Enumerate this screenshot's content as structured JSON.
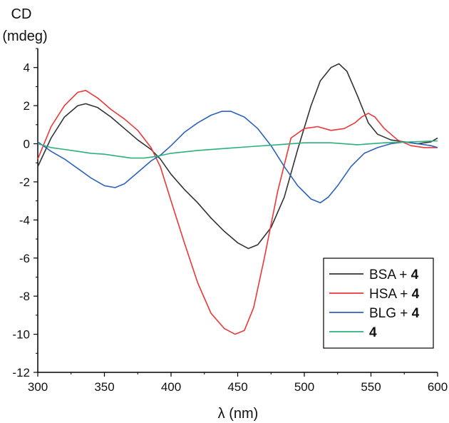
{
  "chart_data": {
    "type": "line",
    "title": "",
    "ylabel_line1": "CD",
    "ylabel_line2": "(mdeg)",
    "xlabel": "λ (nm)",
    "xlim": [
      300,
      600
    ],
    "ylim": [
      -12,
      5
    ],
    "xticks": [
      300,
      350,
      400,
      450,
      500,
      550,
      600
    ],
    "yticks": [
      -12,
      -10,
      -8,
      -6,
      -4,
      -2,
      0,
      2,
      4
    ],
    "grid": false,
    "legend_position": "bottom-right",
    "series": [
      {
        "name": "BSA + 4",
        "legend_prefix": "BSA + ",
        "legend_bold": "4",
        "color": "#333333",
        "x": [
          300,
          310,
          320,
          330,
          336,
          345,
          355,
          365,
          375,
          385,
          392,
          400,
          410,
          420,
          430,
          440,
          450,
          458,
          465,
          475,
          485,
          495,
          505,
          512,
          520,
          526,
          532,
          540,
          548,
          555,
          565,
          575,
          585,
          595,
          600
        ],
        "y": [
          -1.2,
          0.3,
          1.4,
          2.0,
          2.1,
          1.9,
          1.4,
          0.8,
          0.2,
          -0.3,
          -0.8,
          -1.6,
          -2.4,
          -3.1,
          -3.9,
          -4.6,
          -5.2,
          -5.5,
          -5.3,
          -4.4,
          -2.8,
          -0.3,
          2.0,
          3.3,
          4.0,
          4.2,
          3.8,
          2.5,
          1.1,
          0.5,
          0.2,
          0.1,
          0.0,
          0.1,
          0.3
        ]
      },
      {
        "name": "HSA + 4",
        "legend_prefix": "HSA + ",
        "legend_bold": "4",
        "color": "#e8383a",
        "x": [
          300,
          310,
          320,
          330,
          336,
          345,
          355,
          365,
          375,
          385,
          392,
          400,
          410,
          420,
          430,
          440,
          448,
          455,
          462,
          470,
          480,
          490,
          500,
          510,
          520,
          530,
          538,
          543,
          548,
          553,
          560,
          570,
          580,
          590,
          600
        ],
        "y": [
          -0.8,
          0.9,
          2.0,
          2.7,
          2.8,
          2.4,
          1.8,
          1.3,
          0.7,
          -0.2,
          -1.2,
          -3.0,
          -5.2,
          -7.3,
          -8.9,
          -9.7,
          -10.0,
          -9.8,
          -8.6,
          -6.0,
          -2.5,
          0.3,
          0.8,
          0.9,
          0.7,
          0.8,
          1.1,
          1.4,
          1.6,
          1.4,
          0.8,
          0.2,
          -0.1,
          -0.2,
          -0.2
        ]
      },
      {
        "name": "BLG + 4",
        "legend_prefix": "BLG + ",
        "legend_bold": "4",
        "color": "#2e62b8",
        "x": [
          300,
          310,
          320,
          330,
          340,
          350,
          358,
          365,
          375,
          385,
          392,
          400,
          410,
          420,
          430,
          438,
          445,
          455,
          465,
          475,
          485,
          495,
          505,
          512,
          518,
          525,
          535,
          545,
          555,
          565,
          575,
          585,
          595,
          600
        ],
        "y": [
          0.1,
          -0.4,
          -0.8,
          -1.3,
          -1.8,
          -2.2,
          -2.3,
          -2.1,
          -1.5,
          -0.9,
          -0.6,
          -0.1,
          0.6,
          1.1,
          1.5,
          1.7,
          1.7,
          1.4,
          0.8,
          -0.1,
          -1.2,
          -2.2,
          -2.9,
          -3.1,
          -2.8,
          -2.2,
          -1.2,
          -0.5,
          -0.2,
          0.0,
          0.1,
          0.0,
          -0.1,
          -0.2
        ]
      },
      {
        "name": "4",
        "legend_prefix": "",
        "legend_bold": "4",
        "color": "#2bb17a",
        "x": [
          300,
          310,
          320,
          330,
          340,
          350,
          360,
          370,
          380,
          390,
          400,
          420,
          440,
          460,
          480,
          500,
          520,
          540,
          560,
          580,
          600
        ],
        "y": [
          0.0,
          -0.2,
          -0.3,
          -0.4,
          -0.5,
          -0.55,
          -0.65,
          -0.75,
          -0.75,
          -0.65,
          -0.5,
          -0.35,
          -0.25,
          -0.15,
          -0.05,
          0.05,
          0.05,
          -0.05,
          0.05,
          0.1,
          0.15
        ]
      }
    ]
  }
}
